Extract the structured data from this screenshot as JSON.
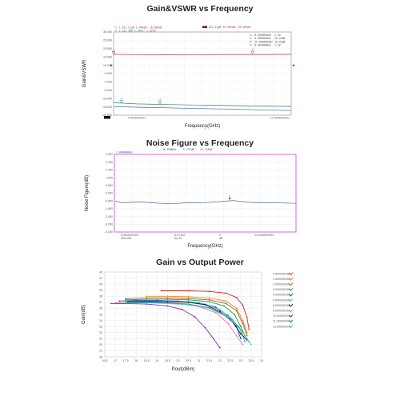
{
  "chart_data": [
    {
      "type": "line",
      "title": "Gain&VSWR vs Frequency",
      "xlabel": "Frequency(GHz)",
      "ylabel": "Gain&VSWR",
      "x_start_label": "0.500000GHz",
      "x_stop_label": "12.000000GHz",
      "xlim": [
        0.5,
        12
      ],
      "ylim": [
        -20,
        30
      ],
      "yticks": [
        "30.000",
        "25.000",
        "20.000",
        "15.000",
        "10.000",
        "5.000",
        "0.000",
        "-5.000",
        "-10.000",
        "-15.000",
        "-20.000"
      ],
      "header_left": [
        "Tr  1  S21  LogM  1.000dB/ 16.000dB",
        "Tr  2  S11  SWR  1.000U/  1.000U"
      ],
      "header_center": "S21  LogM  10.000dB/ 10.000dB",
      "marker_table": [
        {
          "id": "1",
          "freq": "0.500000GHz",
          "value": "1.34"
        },
        {
          "id": "2",
          "freq": "6.000000GHz",
          "value": "16.42dB"
        },
        {
          "id": "3",
          "freq": "12.000000GHz",
          "value": "16.56dB"
        },
        {
          "id": "4",
          "freq": "6.000000GHz",
          "value": "1.62"
        }
      ],
      "series": [
        {
          "color": "#b03030",
          "x": [
            0.5,
            2,
            4,
            6,
            8,
            10,
            12
          ],
          "y": [
            16.6,
            16.4,
            16.3,
            16.4,
            16.5,
            16.5,
            16.6
          ]
        },
        {
          "color": "#2e8b57",
          "x": [
            0.5,
            2,
            4,
            6,
            8,
            10,
            12
          ],
          "y": [
            -12.5,
            -13.2,
            -13.6,
            -13.9,
            -14.2,
            -14.5,
            -14.7
          ]
        },
        {
          "color": "#3a5fa8",
          "x": [
            0.5,
            2,
            4,
            6,
            8,
            10,
            12
          ],
          "y": [
            -14.8,
            -15.2,
            -15.6,
            -16.0,
            -16.3,
            -16.8,
            -17.2
          ]
        }
      ],
      "markers": [
        {
          "label": "1",
          "x": 0.5,
          "y": 16.6,
          "color": "#b03030"
        },
        {
          "label": "2",
          "x": 1.0,
          "y": -12.8,
          "color": "#2e8b57"
        },
        {
          "label": "3",
          "x": 3.5,
          "y": -13.4,
          "color": "#2e8b57"
        },
        {
          "label": "4",
          "x": 9.5,
          "y": 16.8,
          "color": "#b03030"
        }
      ],
      "colors": {
        "frame": "#888888",
        "grid": "#cfcfcf",
        "ref_marker": "#cc2222"
      }
    },
    {
      "type": "line",
      "title": "Noise Figure vs Frequency",
      "xlabel": "Frequency(GHz)",
      "ylabel": "Noise Figure(dB)",
      "xlim": [
        0.5,
        12
      ],
      "ylim": [
        -4,
        4
      ],
      "yticks": [
        "4.000",
        "3.200",
        "2.400",
        "1.600",
        "0.800",
        "0.000",
        "-0.800",
        "-1.600",
        "-2.400",
        "-3.200",
        "-4.000"
      ],
      "header_left": "1.000000GHz",
      "header_info": [
        "10.500GHz",
        "5.275dB",
        "24.748dB"
      ],
      "xtick_rows": [
        [
          "0.500000GHz",
          "6.0  GHz",
          "0",
          "12.000000GHz"
        ],
        [
          "305.258",
          "Eq 15",
          "dB",
          ""
        ]
      ],
      "series": [
        {
          "color": "#556b9a",
          "x": [
            0.5,
            1,
            2,
            3,
            4,
            5,
            6,
            7,
            8,
            9,
            10,
            11,
            12
          ],
          "y": [
            -0.8,
            -1.0,
            -0.9,
            -1.0,
            -1.1,
            -1.0,
            -1.0,
            -0.9,
            -0.75,
            -0.95,
            -1.0,
            -1.0,
            -1.05
          ]
        }
      ],
      "markers": [
        {
          "label": "1",
          "x": 7.8,
          "y": -0.7,
          "color": "#3344aa"
        }
      ],
      "colors": {
        "frame": "#cc44cc",
        "grid": "#dddddd"
      }
    },
    {
      "type": "line",
      "title": "Gain vs Output Power",
      "xlabel": "Pout(dBm)",
      "ylabel": "Gain(dB)",
      "xlim": [
        16.5,
        24
      ],
      "ylim": [
        28,
        42
      ],
      "xticks": [
        "16.5",
        "17",
        "17.5",
        "18",
        "18.5",
        "19",
        "19.5",
        "20",
        "20.5",
        "21",
        "21.5",
        "22",
        "22.5",
        "23",
        "23.5",
        "24"
      ],
      "yticks": [
        "42",
        "41",
        "40",
        "39",
        "38",
        "37",
        "36",
        "35",
        "34",
        "33",
        "32",
        "31",
        "30",
        "29",
        "28"
      ],
      "series": [
        {
          "name": "0.500000GHz",
          "color": "#d62728",
          "x": [
            19.2,
            20.5,
            21.5,
            22.3,
            22.8,
            23.1,
            23.3,
            23.4
          ],
          "y": [
            38.9,
            38.9,
            38.8,
            38.5,
            37.8,
            36.5,
            34.5,
            32.5
          ]
        },
        {
          "name": "1.000000GHz",
          "color": "#ff7f0e",
          "x": [
            18.5,
            19.5,
            20.5,
            21.5,
            22.3,
            22.8,
            23.1,
            23.3
          ],
          "y": [
            38.0,
            38.0,
            37.9,
            37.7,
            37.2,
            36.0,
            34.0,
            32.0
          ]
        },
        {
          "name": "2.000000GHz",
          "color": "#8c6d31",
          "x": [
            17.5,
            18.5,
            19.5,
            20.5,
            21.5,
            22.3,
            22.8,
            23.1,
            23.3
          ],
          "y": [
            37.6,
            37.7,
            37.7,
            37.6,
            37.4,
            36.8,
            35.6,
            33.5,
            31.5
          ]
        },
        {
          "name": "3.000000GHz",
          "color": "#2ca02c",
          "x": [
            17.5,
            18.5,
            19.5,
            20.5,
            21.5,
            22.2,
            22.7,
            23.0,
            23.2
          ],
          "y": [
            37.4,
            37.5,
            37.5,
            37.4,
            37.1,
            36.4,
            35.0,
            33.0,
            31.5
          ]
        },
        {
          "name": "4.000000GHz",
          "color": "#1f3fbf",
          "x": [
            17.2,
            18,
            19,
            20,
            21,
            21.8,
            22.4,
            22.8,
            23.0
          ],
          "y": [
            37.2,
            37.3,
            37.3,
            37.2,
            36.9,
            36.2,
            34.8,
            33.0,
            31.0
          ]
        },
        {
          "name": "5.000000GHz",
          "color": "#17becf",
          "x": [
            17.5,
            18.5,
            19.5,
            20.5,
            21.3,
            22.0,
            22.6,
            23.0,
            23.2
          ],
          "y": [
            37.2,
            37.2,
            37.2,
            37.1,
            36.7,
            35.8,
            34.2,
            32.3,
            30.5
          ]
        },
        {
          "name": "6.000000GHz",
          "color": "#111111",
          "x": [
            17.6,
            18.5,
            19.5,
            20.5,
            21.3,
            22.0,
            22.6,
            23.0,
            23.3
          ],
          "y": [
            37.1,
            37.1,
            37.1,
            37.0,
            36.6,
            35.5,
            33.8,
            31.8,
            30.8
          ]
        },
        {
          "name": "8.000000GHz",
          "color": "#e377c2",
          "x": [
            17.0,
            18,
            19,
            20,
            21,
            21.8,
            22.4,
            22.8,
            23.1
          ],
          "y": [
            36.9,
            36.9,
            36.9,
            36.8,
            36.3,
            35.3,
            33.5,
            31.5,
            30.0
          ]
        },
        {
          "name": "10.000000GHz",
          "color": "#7b2fbe",
          "x": [
            16.8,
            17.5,
            18.5,
            19.5,
            20.2,
            20.8,
            21.3,
            21.7,
            22.0
          ],
          "y": [
            36.8,
            36.8,
            36.7,
            36.4,
            35.8,
            34.6,
            32.8,
            31.0,
            29.5
          ]
        },
        {
          "name": "11.000000GHz",
          "color": "#2b83ba",
          "x": [
            17.5,
            18.5,
            19.5,
            20.5,
            21.5,
            22.3,
            22.9,
            23.2,
            23.4
          ],
          "y": [
            37.0,
            37.0,
            36.9,
            36.7,
            36.1,
            34.8,
            33.0,
            31.5,
            30.5
          ]
        },
        {
          "name": "12.000000GHz",
          "color": "#66c2a5",
          "x": [
            17.5,
            18.5,
            19.5,
            20.5,
            21.5,
            22.4,
            23.0,
            23.3,
            23.5
          ],
          "y": [
            36.9,
            36.9,
            36.8,
            36.6,
            36.0,
            34.5,
            32.5,
            31.0,
            30.0
          ]
        }
      ],
      "legend_position": "right",
      "grid": true
    }
  ]
}
